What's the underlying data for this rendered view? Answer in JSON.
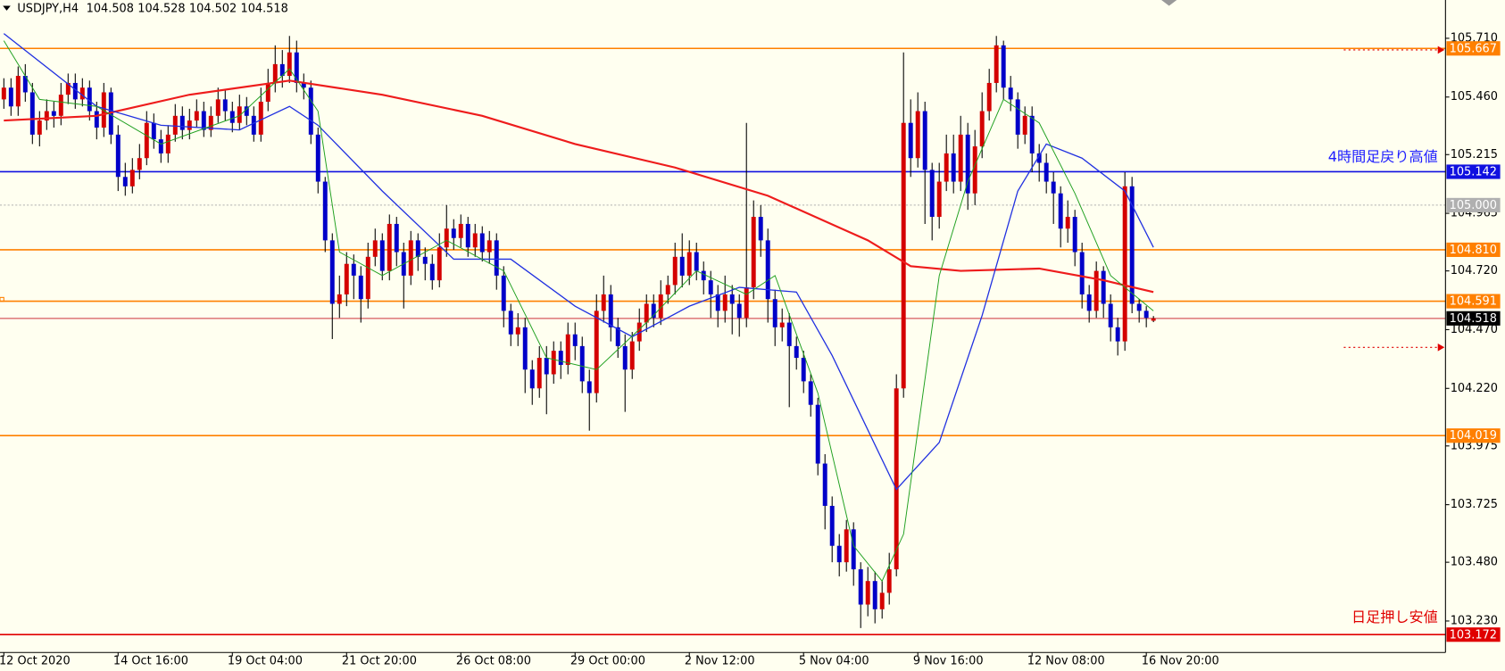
{
  "chart_data": {
    "type": "candlestick",
    "symbol": "USDJPY,H4",
    "up_color": "#d40000",
    "down_color": "#0000c8",
    "wick_color": "#000000",
    "open": [
      105.45,
      105.5,
      105.42,
      105.55,
      105.48,
      105.3,
      105.36,
      105.4,
      105.38,
      105.47,
      105.52,
      105.45,
      105.5,
      105.4,
      105.33,
      105.48,
      105.3,
      105.12,
      105.08,
      105.15,
      105.2,
      105.35,
      105.28,
      105.22,
      105.3,
      105.38,
      105.32,
      105.36,
      105.4,
      105.32,
      105.38,
      105.45,
      105.4,
      105.35,
      105.42,
      105.38,
      105.3,
      105.44,
      105.52,
      105.6,
      105.55,
      105.65,
      105.52,
      105.5,
      105.3,
      105.1,
      104.85,
      104.58,
      104.62,
      104.75,
      104.7,
      104.6,
      104.78,
      104.85,
      104.72,
      104.92,
      104.8,
      104.7,
      104.85,
      104.78,
      104.75,
      104.68,
      104.82,
      104.9,
      104.86,
      104.92,
      104.82,
      104.88,
      104.8,
      104.85,
      104.7,
      104.55,
      104.45,
      104.48,
      104.3,
      104.22,
      104.35,
      104.28,
      104.38,
      104.32,
      104.45,
      104.4,
      104.25,
      104.2,
      104.55,
      104.62,
      104.48,
      104.4,
      104.3,
      104.42,
      104.5,
      104.58,
      104.52,
      104.62,
      104.66,
      104.78,
      104.7,
      104.8,
      104.72,
      104.68,
      104.62,
      104.55,
      104.62,
      104.58,
      104.52,
      104.65,
      104.95,
      104.85,
      104.6,
      104.48,
      104.5,
      104.4,
      104.35,
      104.25,
      104.15,
      103.9,
      103.72,
      103.55,
      103.48,
      103.62,
      103.45,
      103.3,
      103.4,
      103.28,
      103.35,
      103.45,
      104.22,
      105.35,
      105.2,
      105.4,
      105.15,
      104.95,
      105.1,
      105.22,
      105.1,
      105.3,
      105.05,
      105.25,
      105.4,
      105.52,
      105.68,
      105.5,
      105.45,
      105.3,
      105.38,
      105.22,
      105.18,
      105.1,
      105.05,
      104.9,
      104.95,
      104.8,
      104.62,
      104.55,
      104.72,
      104.58,
      104.48,
      104.42,
      105.08,
      104.58,
      104.55,
      104.508
    ],
    "high": [
      105.54,
      105.54,
      105.59,
      105.6,
      105.52,
      105.4,
      105.45,
      105.44,
      105.52,
      105.56,
      105.56,
      105.54,
      105.53,
      105.44,
      105.52,
      105.5,
      105.34,
      105.18,
      105.2,
      105.26,
      105.4,
      105.39,
      105.32,
      105.34,
      105.43,
      105.42,
      105.41,
      105.45,
      105.44,
      105.42,
      105.5,
      105.49,
      105.44,
      105.47,
      105.46,
      105.42,
      105.5,
      105.58,
      105.68,
      105.66,
      105.72,
      105.7,
      105.56,
      105.53,
      105.33,
      105.12,
      104.88,
      104.7,
      104.8,
      104.79,
      104.74,
      104.84,
      104.9,
      104.88,
      104.96,
      104.95,
      104.84,
      104.89,
      104.88,
      104.82,
      104.79,
      104.88,
      105.0,
      104.94,
      104.96,
      104.95,
      104.92,
      104.91,
      104.89,
      104.88,
      104.74,
      104.58,
      104.54,
      104.52,
      104.34,
      104.4,
      104.4,
      104.42,
      104.42,
      104.5,
      104.5,
      104.44,
      104.3,
      104.62,
      104.7,
      104.66,
      104.52,
      104.45,
      104.46,
      104.56,
      104.62,
      104.62,
      104.68,
      104.7,
      104.84,
      104.88,
      104.85,
      104.84,
      104.76,
      104.72,
      104.66,
      104.7,
      104.66,
      104.62,
      105.35,
      105.02,
      105.0,
      104.9,
      104.64,
      104.56,
      104.54,
      104.44,
      104.38,
      104.28,
      104.18,
      103.94,
      103.76,
      103.6,
      103.66,
      103.65,
      103.48,
      103.46,
      103.44,
      103.4,
      103.52,
      104.28,
      105.65,
      105.45,
      105.48,
      105.44,
      105.18,
      105.18,
      105.3,
      105.3,
      105.38,
      105.35,
      105.32,
      105.48,
      105.58,
      105.72,
      105.7,
      105.55,
      105.48,
      105.42,
      105.42,
      105.26,
      105.22,
      105.14,
      105.08,
      105.02,
      104.98,
      104.84,
      104.66,
      104.76,
      104.74,
      104.62,
      104.52,
      105.14,
      105.12,
      104.6,
      104.57,
      104.528
    ],
    "low": [
      105.41,
      105.38,
      105.38,
      105.44,
      105.26,
      105.25,
      105.32,
      105.33,
      105.34,
      105.43,
      105.41,
      105.42,
      105.36,
      105.28,
      105.29,
      105.26,
      105.06,
      105.04,
      105.05,
      105.11,
      105.17,
      105.24,
      105.18,
      105.18,
      105.27,
      105.28,
      105.28,
      105.33,
      105.29,
      105.29,
      105.35,
      105.36,
      105.31,
      105.32,
      105.34,
      105.27,
      105.27,
      105.4,
      105.48,
      105.5,
      105.52,
      105.48,
      105.45,
      105.26,
      105.05,
      104.8,
      104.43,
      104.52,
      104.57,
      104.6,
      104.5,
      104.56,
      104.74,
      104.68,
      104.68,
      104.74,
      104.56,
      104.66,
      104.72,
      104.68,
      104.64,
      104.65,
      104.78,
      104.81,
      104.82,
      104.78,
      104.78,
      104.76,
      104.75,
      104.64,
      104.48,
      104.4,
      104.4,
      104.2,
      104.15,
      104.18,
      104.11,
      104.24,
      104.26,
      104.28,
      104.34,
      104.2,
      104.04,
      104.16,
      104.5,
      104.42,
      104.35,
      104.12,
      104.26,
      104.38,
      104.46,
      104.48,
      104.49,
      104.58,
      104.62,
      104.65,
      104.66,
      104.68,
      104.62,
      104.52,
      104.48,
      104.5,
      104.45,
      104.44,
      104.48,
      104.6,
      104.78,
      104.5,
      104.4,
      104.42,
      104.14,
      104.3,
      104.2,
      104.1,
      103.85,
      103.62,
      103.48,
      103.42,
      103.44,
      103.38,
      103.2,
      103.25,
      103.22,
      103.24,
      103.3,
      103.42,
      104.18,
      105.12,
      105.16,
      104.92,
      104.85,
      104.9,
      105.06,
      105.05,
      105.06,
      104.98,
      105.0,
      105.2,
      105.36,
      105.48,
      105.45,
      105.4,
      105.24,
      105.26,
      105.14,
      105.1,
      105.05,
      104.92,
      104.82,
      104.84,
      104.74,
      104.56,
      104.5,
      104.52,
      104.52,
      104.42,
      104.36,
      104.38,
      104.54,
      104.5,
      104.48,
      104.502
    ],
    "close": [
      105.5,
      105.42,
      105.55,
      105.48,
      105.3,
      105.36,
      105.4,
      105.38,
      105.47,
      105.52,
      105.45,
      105.5,
      105.4,
      105.33,
      105.48,
      105.3,
      105.12,
      105.08,
      105.15,
      105.2,
      105.35,
      105.28,
      105.22,
      105.3,
      105.38,
      105.32,
      105.36,
      105.4,
      105.32,
      105.38,
      105.45,
      105.4,
      105.35,
      105.42,
      105.38,
      105.3,
      105.44,
      105.52,
      105.6,
      105.55,
      105.65,
      105.52,
      105.5,
      105.3,
      105.1,
      104.85,
      104.58,
      104.62,
      104.75,
      104.7,
      104.6,
      104.78,
      104.85,
      104.72,
      104.92,
      104.8,
      104.7,
      104.85,
      104.78,
      104.75,
      104.68,
      104.82,
      104.9,
      104.86,
      104.92,
      104.82,
      104.88,
      104.8,
      104.85,
      104.7,
      104.55,
      104.45,
      104.48,
      104.3,
      104.22,
      104.35,
      104.28,
      104.38,
      104.32,
      104.45,
      104.4,
      104.25,
      104.2,
      104.55,
      104.62,
      104.48,
      104.4,
      104.3,
      104.42,
      104.5,
      104.58,
      104.52,
      104.62,
      104.66,
      104.78,
      104.7,
      104.8,
      104.72,
      104.68,
      104.62,
      104.55,
      104.62,
      104.58,
      104.52,
      104.65,
      104.95,
      104.85,
      104.6,
      104.48,
      104.5,
      104.4,
      104.35,
      104.25,
      104.15,
      103.9,
      103.72,
      103.55,
      103.48,
      103.62,
      103.45,
      103.3,
      103.4,
      103.28,
      103.35,
      103.45,
      104.22,
      105.35,
      105.2,
      105.4,
      105.15,
      104.95,
      105.1,
      105.22,
      105.1,
      105.3,
      105.05,
      105.25,
      105.4,
      105.52,
      105.68,
      105.5,
      105.45,
      105.3,
      105.38,
      105.22,
      105.18,
      105.1,
      105.05,
      104.9,
      104.95,
      104.8,
      104.62,
      104.55,
      104.72,
      104.58,
      104.48,
      104.42,
      105.08,
      104.58,
      104.55,
      104.52,
      104.518
    ],
    "indicators": [
      {
        "color": "#ee1c1c",
        "width": 2,
        "x": [
          0,
          13,
          26,
          40,
          53,
          67,
          80,
          94,
          107,
          121,
          127,
          134,
          145,
          154,
          161
        ],
        "values": [
          105.36,
          105.38,
          105.47,
          105.53,
          105.47,
          105.38,
          105.26,
          105.16,
          105.04,
          104.85,
          104.74,
          104.72,
          104.73,
          104.68,
          104.63
        ]
      },
      {
        "color": "#2030e0",
        "width": 1.2,
        "x": [
          0,
          13,
          22,
          33,
          40,
          44,
          53,
          63,
          71,
          80,
          88,
          96,
          103,
          111,
          116,
          125,
          131,
          137,
          142,
          146,
          151,
          157,
          161
        ],
        "values": [
          105.73,
          105.42,
          105.34,
          105.32,
          105.42,
          105.34,
          105.06,
          104.77,
          104.77,
          104.57,
          104.44,
          104.57,
          104.65,
          104.63,
          104.36,
          103.79,
          103.99,
          104.53,
          105.06,
          105.26,
          105.2,
          105.06,
          104.82
        ]
      },
      {
        "color": "#20a020",
        "width": 0.9,
        "x": [
          0,
          5,
          13,
          22,
          33,
          40,
          44,
          47,
          53,
          62,
          70,
          76,
          83,
          90,
          97,
          104,
          108,
          114,
          119,
          123,
          126,
          131,
          135,
          140,
          145,
          150,
          155,
          161
        ],
        "values": [
          105.7,
          105.45,
          105.42,
          105.26,
          105.38,
          105.58,
          105.4,
          104.8,
          104.7,
          104.85,
          104.72,
          104.35,
          104.3,
          104.5,
          104.72,
          104.62,
          104.7,
          104.2,
          103.55,
          103.4,
          103.6,
          104.7,
          105.1,
          105.45,
          105.35,
          105.05,
          104.7,
          104.55
        ]
      }
    ],
    "levels": [
      {
        "value": 105.667,
        "color": "#ff8000"
      },
      {
        "value": 105.142,
        "color": "#1010e0"
      },
      {
        "value": 105.0,
        "label": "105.000",
        "color": "#b0b0b0",
        "style": "dotted"
      },
      {
        "value": 104.81,
        "label": "104.810",
        "color": "#ff8000"
      },
      {
        "value": 104.591,
        "color": "#ff8000"
      },
      {
        "value": 104.518,
        "color": "#000000",
        "line_color": "#e08080"
      },
      {
        "value": 104.019,
        "color": "#ff8000"
      },
      {
        "value": 103.172,
        "color": "#e00000"
      }
    ],
    "annotations": [
      {
        "text": "4時間足戻り高値",
        "color": "#2020ff"
      },
      {
        "text": "日足押し安値",
        "color": "#e00000"
      }
    ],
    "xlim": [
      -0.54,
      201.9
    ],
    "xticks": [
      {
        "value": 0,
        "label": "12 Oct 2020"
      },
      {
        "value": 16,
        "label": "14 Oct 16:00"
      },
      {
        "value": 32,
        "label": "19 Oct 04:00"
      },
      {
        "value": 48,
        "label": "21 Oct 20:00"
      },
      {
        "value": 64,
        "label": "26 Oct 08:00"
      },
      {
        "value": 80,
        "label": "29 Oct 00:00"
      },
      {
        "value": 96,
        "label": "2 Nov 12:00"
      },
      {
        "value": 112,
        "label": "5 Nov 04:00"
      },
      {
        "value": 128,
        "label": "9 Nov 16:00"
      },
      {
        "value": 144,
        "label": "12 Nov 08:00"
      },
      {
        "value": 160,
        "label": "16 Nov 20:00"
      }
    ],
    "ylim": [
      103.096,
      105.873
    ],
    "yticks": [
      {
        "value": 105.71,
        "label": "105.710"
      },
      {
        "value": 105.46,
        "label": "105.460"
      },
      105.215,
      104.965,
      {
        "value": 104.72,
        "label": "104.720"
      },
      {
        "value": 104.47,
        "label": "104.470"
      },
      {
        "value": 104.22,
        "label": "104.220"
      },
      103.975,
      103.725,
      {
        "value": 103.48,
        "label": "103.480"
      },
      {
        "value": 103.23,
        "label": "103.230"
      }
    ]
  }
}
